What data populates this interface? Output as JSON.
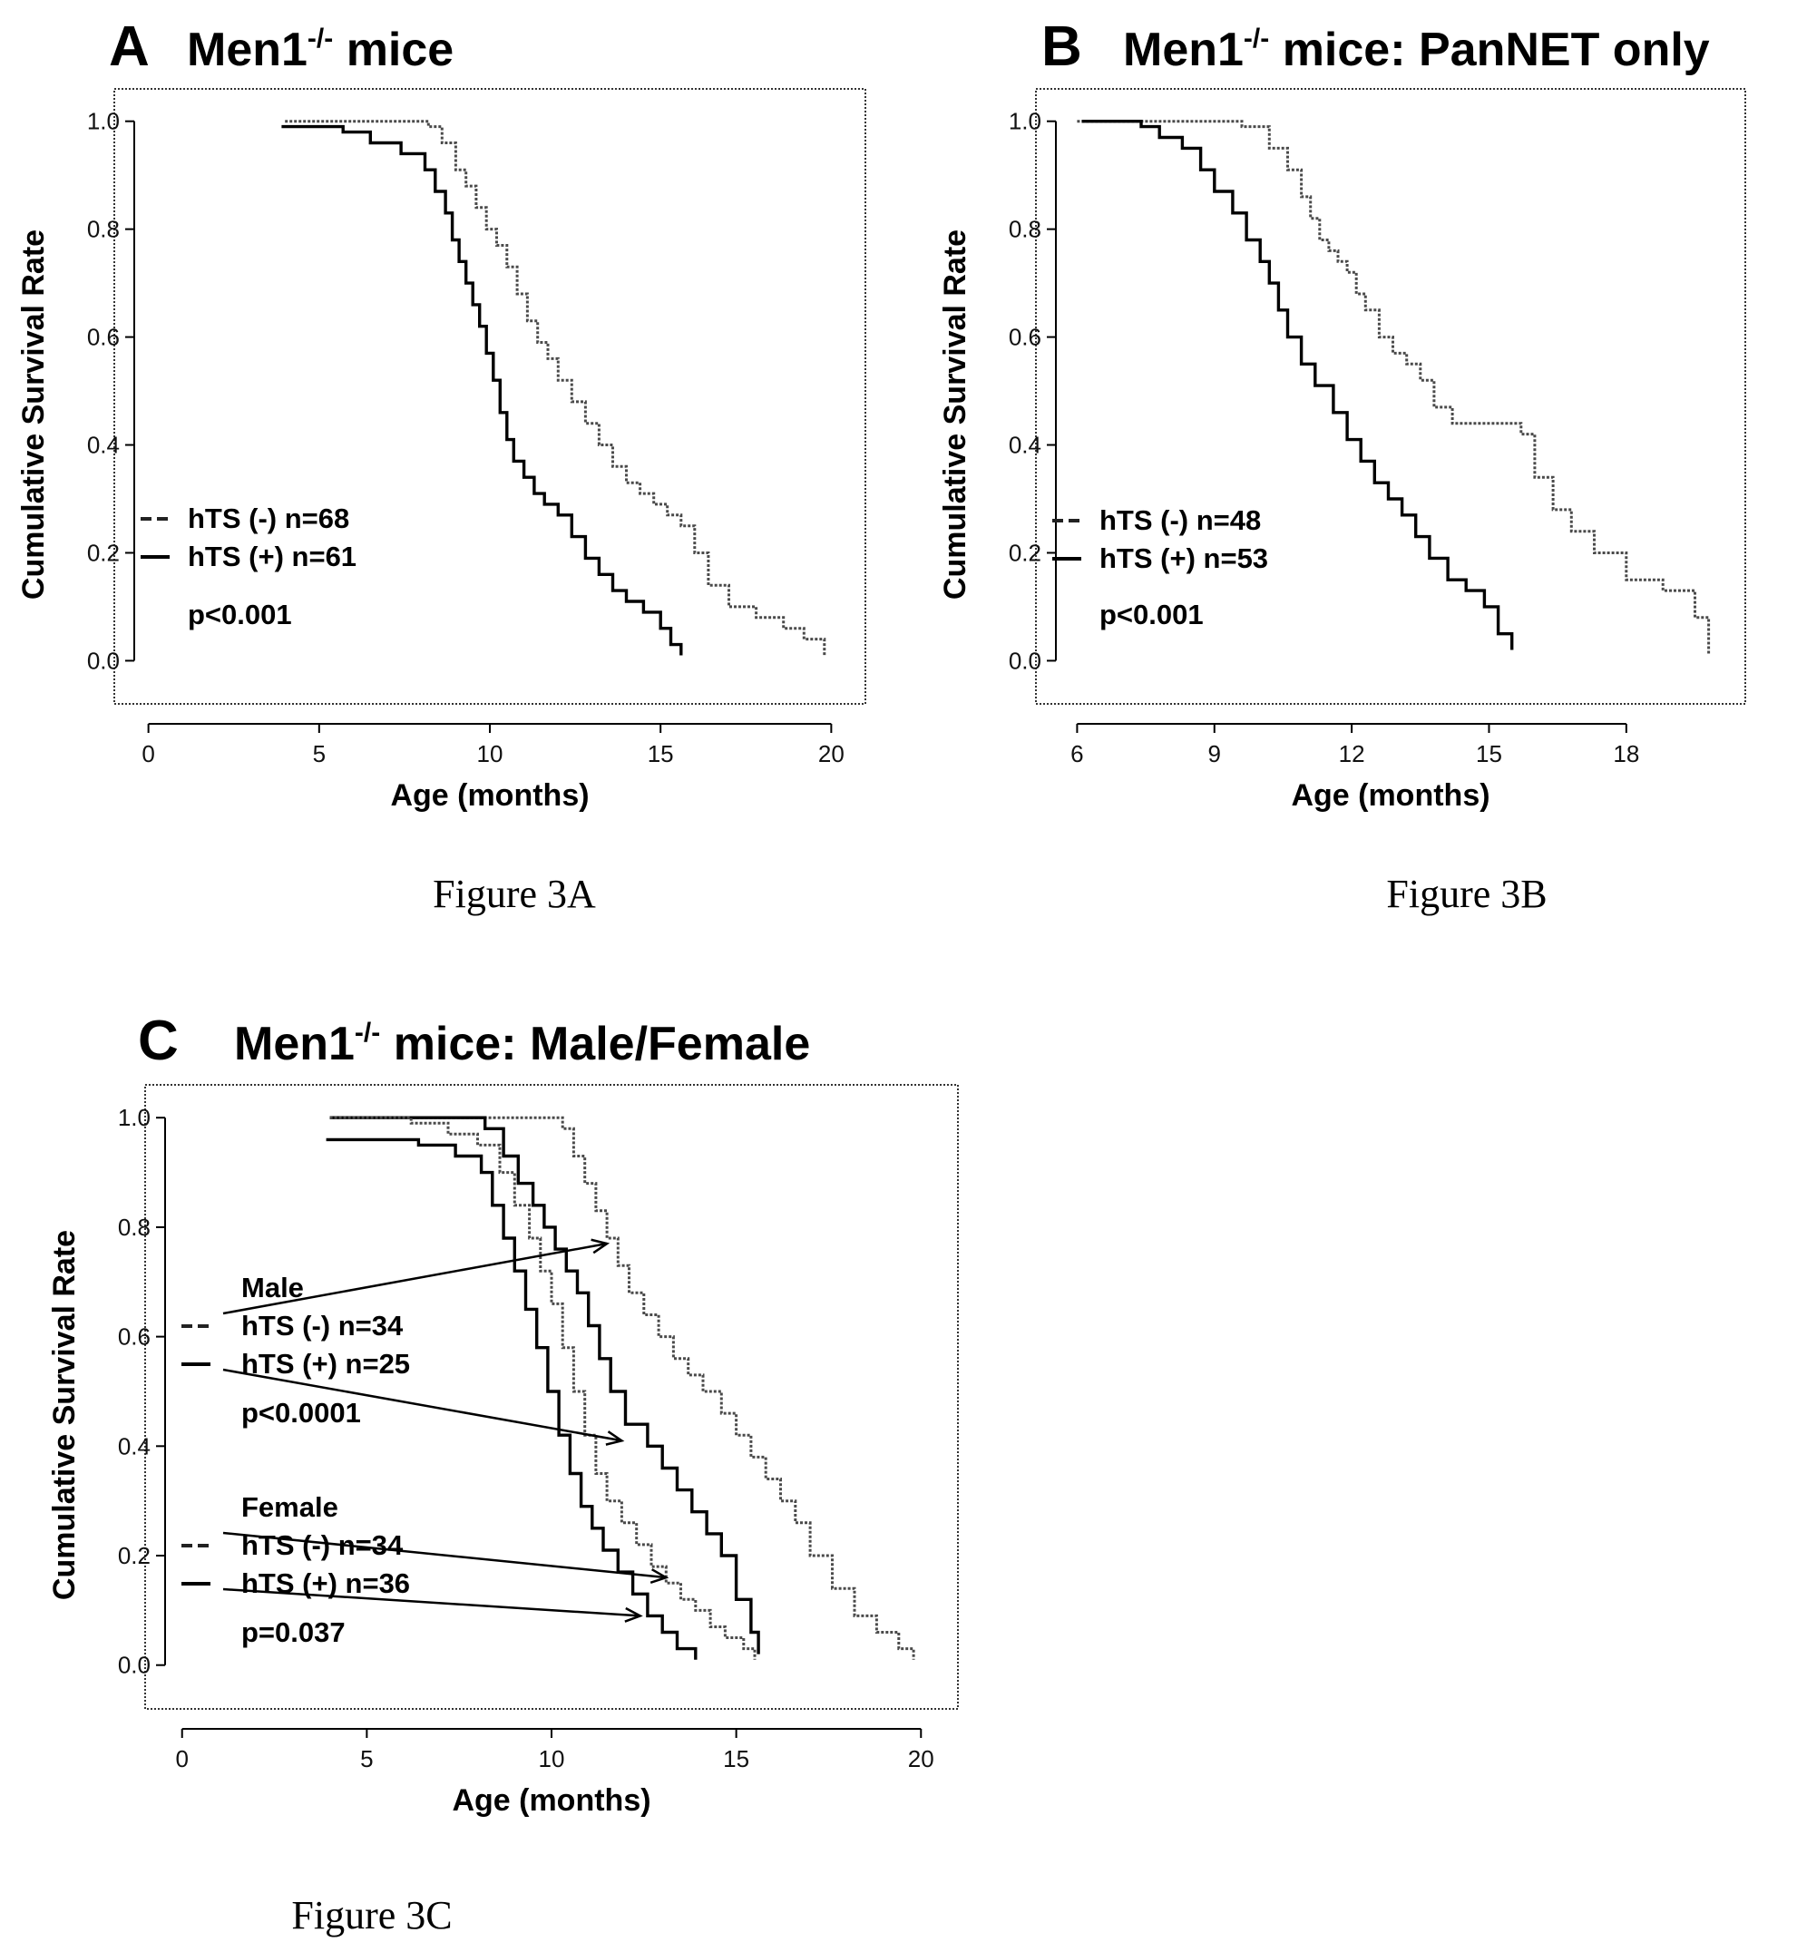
{
  "chart_data": [
    {
      "id": "A",
      "type": "line",
      "step": true,
      "panel_letter": "A",
      "title_main": "Men1",
      "title_sup": "-/-",
      "title_rest": " mice",
      "xlabel": "Age (months)",
      "ylabel": "Cumulative Survival Rate",
      "xlim": [
        -1,
        21
      ],
      "ylim": [
        -0.08,
        1.06
      ],
      "xticks": [
        0,
        5,
        10,
        15,
        20
      ],
      "yticks": [
        0.0,
        0.2,
        0.4,
        0.6,
        0.8,
        1.0
      ],
      "xtick_labels": [
        "0",
        "5",
        "10",
        "15",
        "20"
      ],
      "ytick_labels": [
        "0.0",
        "0.2",
        "0.4",
        "0.6",
        "0.8",
        "1.0"
      ],
      "grid": false,
      "legend_position": "lower-left",
      "legend": [
        {
          "text": "hTS (-) n=68",
          "style": "dashed"
        },
        {
          "text": "hTS (+) n=61",
          "style": "solid"
        }
      ],
      "pvalue": "p<0.001",
      "caption": "Figure 3A",
      "series": [
        {
          "style": "dashed",
          "x": [
            4,
            8.2,
            8.6,
            9,
            9.3,
            9.6,
            9.9,
            10.2,
            10.5,
            10.8,
            11.1,
            11.4,
            11.7,
            12,
            12.4,
            12.8,
            13.2,
            13.6,
            14,
            14.4,
            14.8,
            15.2,
            15.6,
            16,
            16.4,
            17,
            17.8,
            18.6,
            19.2,
            19.8
          ],
          "y": [
            1.0,
            0.99,
            0.96,
            0.91,
            0.88,
            0.84,
            0.8,
            0.77,
            0.73,
            0.68,
            0.63,
            0.59,
            0.56,
            0.52,
            0.48,
            0.44,
            0.4,
            0.36,
            0.33,
            0.31,
            0.29,
            0.27,
            0.25,
            0.2,
            0.14,
            0.1,
            0.08,
            0.06,
            0.04,
            0.01
          ]
        },
        {
          "style": "solid",
          "x": [
            3.9,
            5.7,
            6.5,
            7.4,
            8.1,
            8.4,
            8.7,
            8.9,
            9.1,
            9.3,
            9.5,
            9.7,
            9.9,
            10.1,
            10.3,
            10.5,
            10.7,
            11,
            11.3,
            11.6,
            12,
            12.4,
            12.8,
            13.2,
            13.6,
            14,
            14.5,
            15,
            15.3,
            15.6
          ],
          "y": [
            0.99,
            0.98,
            0.96,
            0.94,
            0.91,
            0.87,
            0.83,
            0.78,
            0.74,
            0.7,
            0.66,
            0.62,
            0.57,
            0.52,
            0.46,
            0.41,
            0.37,
            0.34,
            0.31,
            0.29,
            0.27,
            0.23,
            0.19,
            0.16,
            0.13,
            0.11,
            0.09,
            0.06,
            0.03,
            0.01
          ]
        }
      ]
    },
    {
      "id": "B",
      "type": "line",
      "step": true,
      "panel_letter": "B",
      "title_main": "Men1",
      "title_sup": "-/-",
      "title_rest": " mice: PanNET only",
      "xlabel": "Age (months)",
      "ylabel": "Cumulative Survival Rate",
      "xlim": [
        5.1,
        20.6
      ],
      "ylim": [
        -0.08,
        1.06
      ],
      "xticks": [
        6,
        9,
        12,
        15,
        18
      ],
      "yticks": [
        0.0,
        0.2,
        0.4,
        0.6,
        0.8,
        1.0
      ],
      "xtick_labels": [
        "6",
        "9",
        "12",
        "15",
        "18"
      ],
      "ytick_labels": [
        "0.0",
        "0.2",
        "0.4",
        "0.6",
        "0.8",
        "1.0"
      ],
      "grid": false,
      "legend_position": "lower-left",
      "legend": [
        {
          "text": "hTS (-) n=48",
          "style": "dashed"
        },
        {
          "text": "hTS (+) n=53",
          "style": "solid"
        }
      ],
      "pvalue": "p<0.001",
      "caption": "Figure 3B",
      "series": [
        {
          "style": "dashed",
          "x": [
            6,
            9.6,
            10.2,
            10.6,
            10.9,
            11.1,
            11.3,
            11.5,
            11.7,
            11.9,
            12.1,
            12.3,
            12.6,
            12.9,
            13.2,
            13.5,
            13.8,
            14.2,
            15.7,
            16,
            16.4,
            16.8,
            17.3,
            18,
            18.8,
            19.5,
            19.8
          ],
          "y": [
            1.0,
            0.99,
            0.95,
            0.91,
            0.86,
            0.82,
            0.78,
            0.76,
            0.74,
            0.72,
            0.68,
            0.65,
            0.6,
            0.57,
            0.55,
            0.52,
            0.47,
            0.44,
            0.42,
            0.34,
            0.28,
            0.24,
            0.2,
            0.15,
            0.13,
            0.08,
            0.01
          ]
        },
        {
          "style": "solid",
          "x": [
            6.1,
            7.4,
            7.8,
            8.3,
            8.7,
            9,
            9.4,
            9.7,
            10,
            10.2,
            10.4,
            10.6,
            10.9,
            11.2,
            11.6,
            11.9,
            12.2,
            12.5,
            12.8,
            13.1,
            13.4,
            13.7,
            14.1,
            14.5,
            14.9,
            15.2,
            15.5
          ],
          "y": [
            1.0,
            0.99,
            0.97,
            0.95,
            0.91,
            0.87,
            0.83,
            0.78,
            0.74,
            0.7,
            0.65,
            0.6,
            0.55,
            0.51,
            0.46,
            0.41,
            0.37,
            0.33,
            0.3,
            0.27,
            0.23,
            0.19,
            0.15,
            0.13,
            0.1,
            0.05,
            0.02
          ]
        }
      ]
    },
    {
      "id": "C",
      "type": "line",
      "step": true,
      "panel_letter": "C",
      "title_main": "Men1",
      "title_sup": "-/-",
      "title_rest": " mice: Male/Female",
      "xlabel": "Age (months)",
      "ylabel": "Cumulative Survival Rate",
      "xlim": [
        -1,
        21
      ],
      "ylim": [
        -0.08,
        1.06
      ],
      "xticks": [
        0,
        5,
        10,
        15,
        20
      ],
      "yticks": [
        0.0,
        0.2,
        0.4,
        0.6,
        0.8,
        1.0
      ],
      "xtick_labels": [
        "0",
        "5",
        "10",
        "15",
        "20"
      ],
      "ytick_labels": [
        "0.0",
        "0.2",
        "0.4",
        "0.6",
        "0.8",
        "1.0"
      ],
      "grid": false,
      "legend_position": "left",
      "groups": [
        {
          "heading": "Male",
          "entries": [
            {
              "text": "hTS (-) n=34",
              "style": "dashed",
              "arrow_to": {
                "x": 11.5,
                "y": 0.77
              }
            },
            {
              "text": "hTS (+) n=25",
              "style": "solid",
              "arrow_to": {
                "x": 11.9,
                "y": 0.41
              }
            }
          ],
          "pvalue": "p<0.0001"
        },
        {
          "heading": "Female",
          "entries": [
            {
              "text": "hTS (-) n=34",
              "style": "dashed",
              "arrow_to": {
                "x": 13.1,
                "y": 0.16
              }
            },
            {
              "text": "hTS (+) n=36",
              "style": "solid",
              "arrow_to": {
                "x": 12.4,
                "y": 0.09
              }
            }
          ],
          "pvalue": "p=0.037"
        }
      ],
      "caption": "Figure 3C",
      "series": [
        {
          "group": "Male",
          "style": "dashed",
          "x": [
            4,
            10.3,
            10.6,
            10.9,
            11.2,
            11.5,
            11.8,
            12.1,
            12.5,
            12.9,
            13.3,
            13.7,
            14.1,
            14.6,
            15,
            15.4,
            15.8,
            16.2,
            16.6,
            17,
            17.6,
            18.2,
            18.8,
            19.4,
            19.8
          ],
          "y": [
            1.0,
            0.98,
            0.93,
            0.88,
            0.83,
            0.78,
            0.73,
            0.68,
            0.64,
            0.6,
            0.56,
            0.53,
            0.5,
            0.46,
            0.42,
            0.38,
            0.34,
            0.3,
            0.26,
            0.2,
            0.14,
            0.09,
            0.06,
            0.03,
            0.01
          ]
        },
        {
          "group": "Male",
          "style": "solid",
          "x": [
            4,
            8.2,
            8.7,
            9.1,
            9.5,
            9.8,
            10.1,
            10.4,
            10.7,
            11,
            11.3,
            11.6,
            12,
            12.6,
            13,
            13.4,
            13.8,
            14.2,
            14.6,
            15,
            15.4,
            15.6
          ],
          "y": [
            1.0,
            0.98,
            0.93,
            0.88,
            0.84,
            0.8,
            0.76,
            0.72,
            0.68,
            0.62,
            0.56,
            0.5,
            0.44,
            0.4,
            0.36,
            0.32,
            0.28,
            0.24,
            0.2,
            0.12,
            0.06,
            0.02
          ]
        },
        {
          "group": "Female",
          "style": "dashed",
          "x": [
            4,
            6.2,
            7.2,
            8,
            8.6,
            9,
            9.4,
            9.7,
            10,
            10.3,
            10.6,
            10.9,
            11.2,
            11.5,
            11.9,
            12.3,
            12.7,
            13.1,
            13.5,
            13.9,
            14.3,
            14.7,
            15.2,
            15.5
          ],
          "y": [
            1.0,
            0.99,
            0.97,
            0.95,
            0.9,
            0.84,
            0.78,
            0.72,
            0.66,
            0.58,
            0.5,
            0.42,
            0.35,
            0.3,
            0.26,
            0.22,
            0.18,
            0.15,
            0.12,
            0.1,
            0.07,
            0.05,
            0.03,
            0.01
          ]
        },
        {
          "group": "Female",
          "style": "solid",
          "x": [
            3.9,
            6.4,
            7.4,
            8.1,
            8.4,
            8.7,
            9,
            9.3,
            9.6,
            9.9,
            10.2,
            10.5,
            10.8,
            11.1,
            11.4,
            11.8,
            12.2,
            12.6,
            13,
            13.4,
            13.9
          ],
          "y": [
            0.96,
            0.95,
            0.93,
            0.9,
            0.84,
            0.78,
            0.72,
            0.65,
            0.58,
            0.5,
            0.42,
            0.35,
            0.29,
            0.25,
            0.21,
            0.17,
            0.13,
            0.09,
            0.06,
            0.03,
            0.01
          ]
        }
      ]
    }
  ]
}
